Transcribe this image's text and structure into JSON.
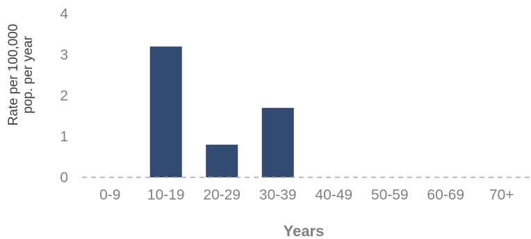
{
  "chart_data": {
    "type": "bar",
    "categories": [
      "0-9",
      "10-19",
      "20-29",
      "30-39",
      "40-49",
      "50-59",
      "60-69",
      "70+"
    ],
    "values": [
      0,
      3.2,
      0.8,
      1.7,
      0,
      0,
      0,
      0
    ],
    "title": "",
    "xlabel": "Years",
    "ylabel_lines": [
      "Rate per 100,000",
      "pop. per year"
    ],
    "ylim": [
      0,
      4
    ],
    "yticks": [
      0,
      1,
      2,
      3,
      4
    ],
    "grid": false,
    "legend": "none",
    "colors": {
      "bar": "#344b71",
      "axis": "#a6a6a6",
      "text": "#808080"
    }
  }
}
